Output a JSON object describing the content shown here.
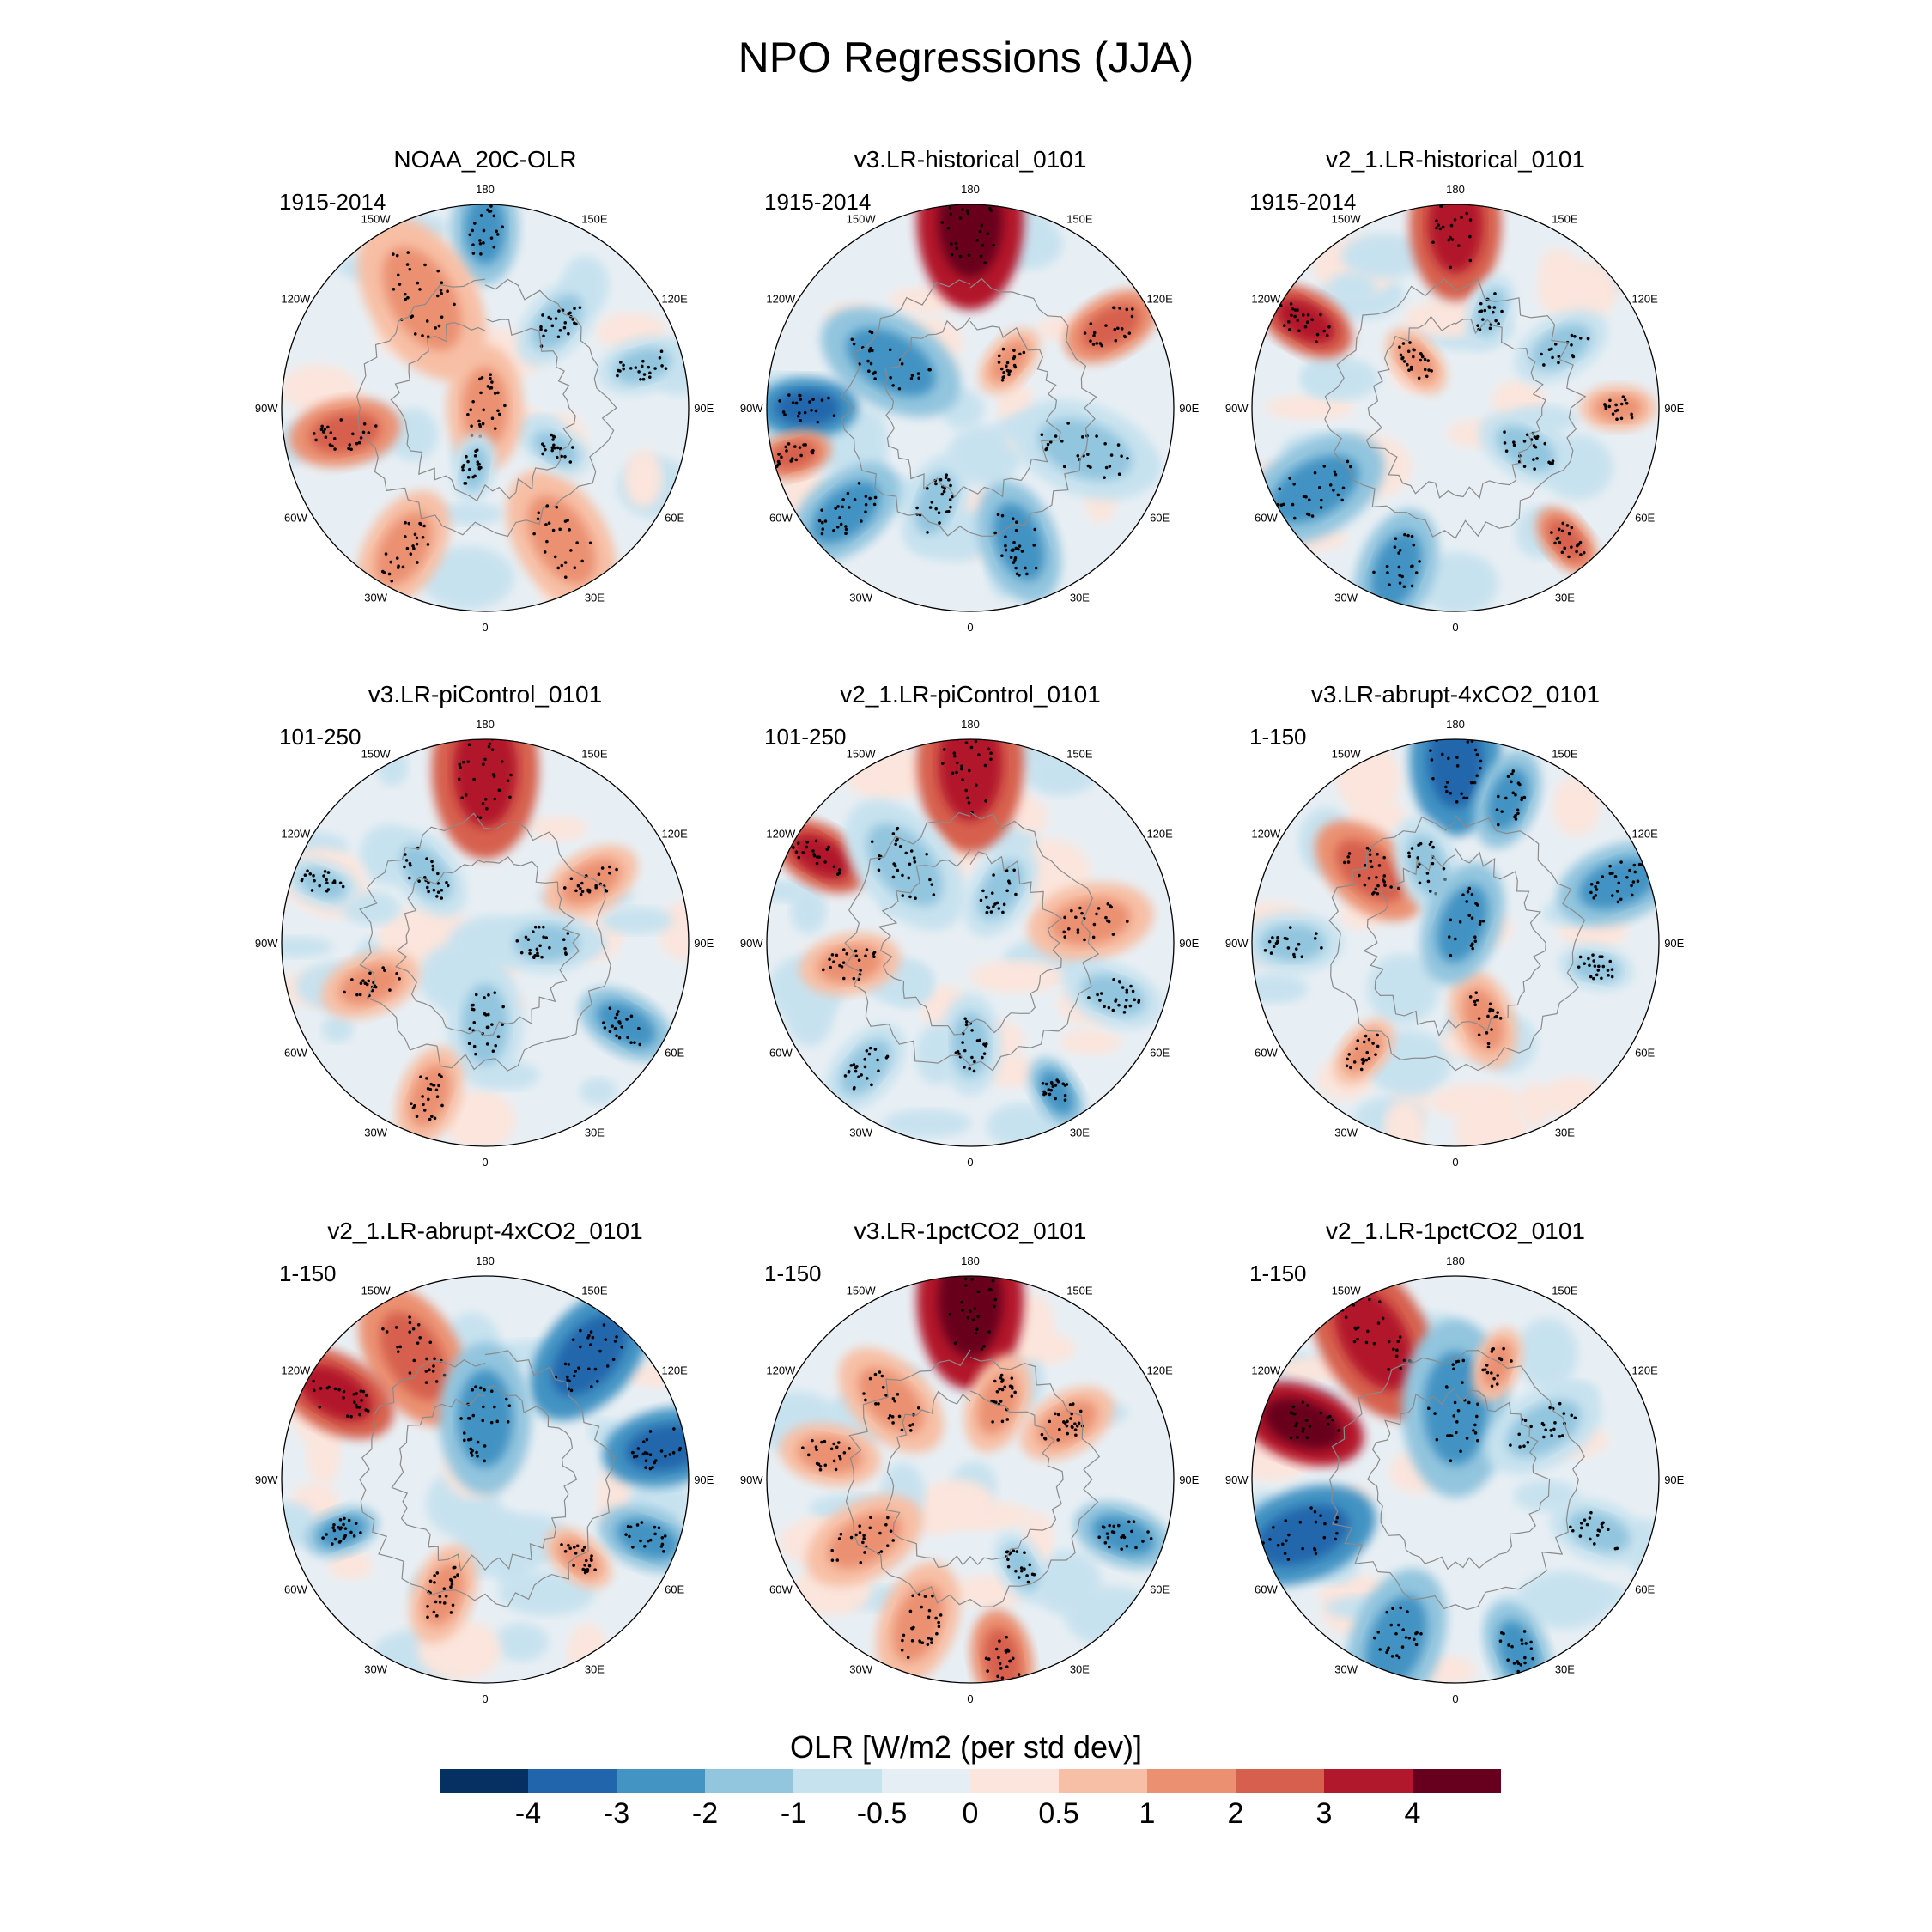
{
  "title": "NPO Regressions (JJA)",
  "lon_labels": [
    "180",
    "150E",
    "120E",
    "90E",
    "60E",
    "30E",
    "0",
    "30W",
    "60W",
    "90W",
    "120W",
    "150W"
  ],
  "panels": [
    {
      "title": "NOAA_20C-OLR",
      "period": "1915-2014",
      "pattern": 0
    },
    {
      "title": "v3.LR-historical_0101",
      "period": "1915-2014",
      "pattern": 1
    },
    {
      "title": "v2_1.LR-historical_0101",
      "period": "1915-2014",
      "pattern": 2
    },
    {
      "title": "v3.LR-piControl_0101",
      "period": "101-250",
      "pattern": 3
    },
    {
      "title": "v2_1.LR-piControl_0101",
      "period": "101-250",
      "pattern": 4
    },
    {
      "title": "v3.LR-abrupt-4xCO2_0101",
      "period": "1-150",
      "pattern": 5
    },
    {
      "title": "v2_1.LR-abrupt-4xCO2_0101",
      "period": "1-150",
      "pattern": 6
    },
    {
      "title": "v3.LR-1pctCO2_0101",
      "period": "1-150",
      "pattern": 7
    },
    {
      "title": "v2_1.LR-1pctCO2_0101",
      "period": "1-150",
      "pattern": 8
    }
  ],
  "colorbar": {
    "title": "OLR [W/m2 (per std dev)]",
    "tick_labels": [
      "-4",
      "-3",
      "-2",
      "-1",
      "-0.5",
      "0",
      "0.5",
      "1",
      "2",
      "3",
      "4"
    ],
    "colors": [
      "#053061",
      "#2166ac",
      "#4393c3",
      "#92c5de",
      "#c7e2ef",
      "#e4eef4",
      "#fbe5dc",
      "#f7bfa5",
      "#eb9172",
      "#d6604d",
      "#b2182b",
      "#67001f"
    ]
  }
}
